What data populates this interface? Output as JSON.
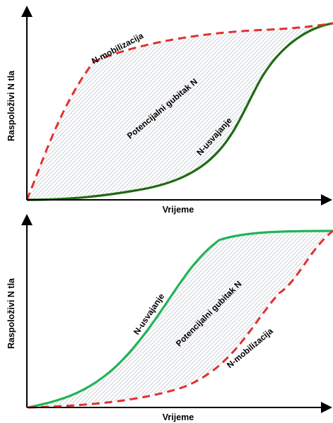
{
  "panels": [
    {
      "id": "top",
      "x_axis_label": "Vrijeme",
      "y_axis_label": "Raspoloživi N tla",
      "mobilization_label": "N-mobilizacija",
      "uptake_label": "N-usvajanje",
      "gap_label": "Potencijalni gubitak N",
      "mobilization_color": "#e03131",
      "uptake_color": "#1e6b12"
    },
    {
      "id": "bottom",
      "x_axis_label": "Vrijeme",
      "y_axis_label": "Raspoloživi N tla",
      "mobilization_label": "N-mobilizacija",
      "uptake_label": "N-usvajanje",
      "gap_label": "Potencijalni gubitak N",
      "mobilization_color": "#e03131",
      "uptake_color": "#22b357"
    }
  ],
  "hatch_color": "#9aa6b8",
  "axis_color": "#000000"
}
